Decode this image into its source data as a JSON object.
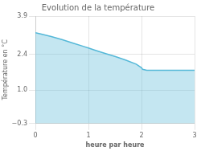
{
  "chart_data": {
    "type": "area",
    "title": "Evolution de la température",
    "xlabel": "heure par heure",
    "ylabel": "Température en °C",
    "x": [
      0,
      0.1,
      0.3,
      0.5,
      0.7,
      0.9,
      1.0,
      1.1,
      1.3,
      1.5,
      1.7,
      1.9,
      2.0,
      2.02,
      2.1,
      2.5,
      3.0
    ],
    "values": [
      3.25,
      3.2,
      3.1,
      2.98,
      2.85,
      2.72,
      2.65,
      2.58,
      2.45,
      2.32,
      2.18,
      2.02,
      1.88,
      1.82,
      1.78,
      1.78,
      1.78
    ],
    "color": "#55b8d8",
    "xlim": [
      0,
      3
    ],
    "ylim": [
      -0.3,
      3.9
    ],
    "xticks": [
      0,
      1,
      2,
      3
    ],
    "yticks": [
      {
        "value": -0.3,
        "label": "−0.3"
      },
      {
        "value": 1.0,
        "label": "1.0"
      },
      {
        "value": 2.4,
        "label": "2.4"
      },
      {
        "value": 3.9,
        "label": "3.9"
      }
    ],
    "grid": true
  }
}
